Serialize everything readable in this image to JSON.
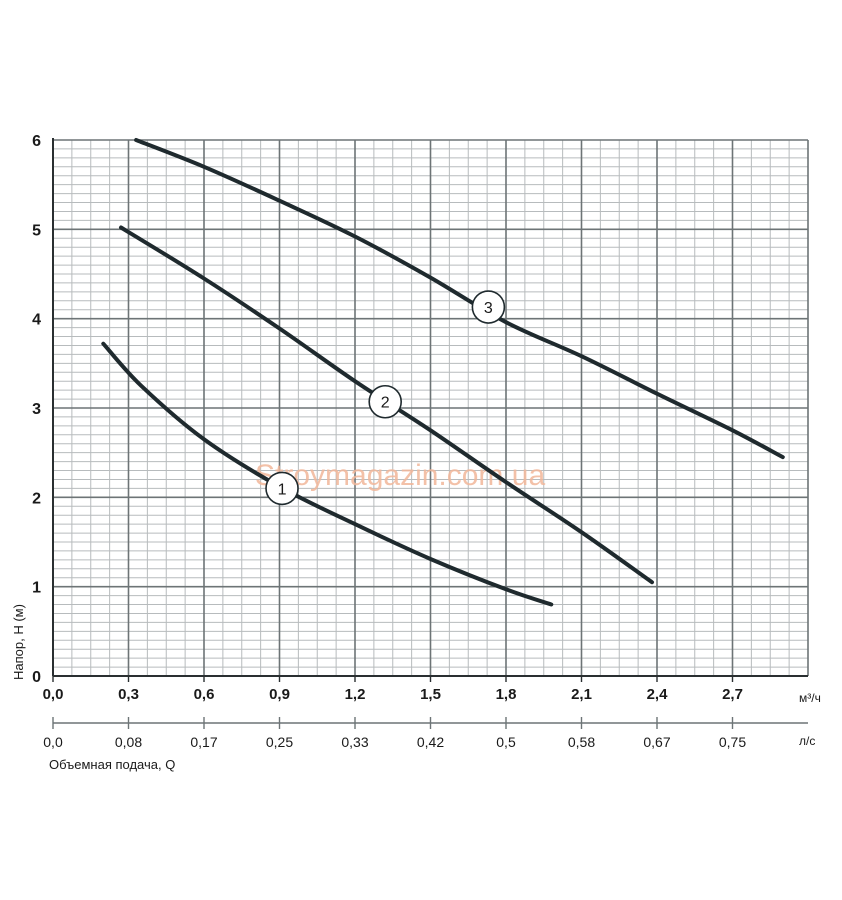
{
  "chart_data": {
    "type": "line",
    "ylabel": "Напор, H (м)",
    "xlabel": "Объемная подача, Q",
    "x_unit": "м³/ч",
    "x2_unit": "л/с",
    "xlim": [
      0,
      3.0
    ],
    "ylim": [
      0,
      6
    ],
    "x_ticks": [
      "0,0",
      "0,3",
      "0,6",
      "0,9",
      "1,2",
      "1,5",
      "1,8",
      "2,1",
      "2,4",
      "2,7"
    ],
    "x2_ticks": [
      "0,0",
      "0,08",
      "0,17",
      "0,25",
      "0,33",
      "0,42",
      "0,5",
      "0,58",
      "0,67",
      "0,75"
    ],
    "y_ticks": [
      "0",
      "1",
      "2",
      "3",
      "4",
      "5",
      "6"
    ],
    "grid": true,
    "watermark": "Stroymagazin.com.ua",
    "series": [
      {
        "name": "1",
        "color": "#1f2a2e",
        "points": [
          [
            0.2,
            3.72
          ],
          [
            0.35,
            3.25
          ],
          [
            0.6,
            2.65
          ],
          [
            0.9,
            2.12
          ],
          [
            1.2,
            1.7
          ],
          [
            1.5,
            1.31
          ],
          [
            1.8,
            0.97
          ],
          [
            1.98,
            0.8
          ]
        ]
      },
      {
        "name": "2",
        "color": "#1f2a2e",
        "points": [
          [
            0.27,
            5.02
          ],
          [
            0.6,
            4.45
          ],
          [
            0.9,
            3.89
          ],
          [
            1.2,
            3.3
          ],
          [
            1.5,
            2.75
          ],
          [
            1.8,
            2.17
          ],
          [
            2.1,
            1.61
          ],
          [
            2.38,
            1.05
          ]
        ]
      },
      {
        "name": "3",
        "color": "#1f2a2e",
        "points": [
          [
            0.33,
            6.0
          ],
          [
            0.6,
            5.7
          ],
          [
            0.9,
            5.32
          ],
          [
            1.2,
            4.92
          ],
          [
            1.5,
            4.46
          ],
          [
            1.8,
            3.96
          ],
          [
            2.1,
            3.58
          ],
          [
            2.4,
            3.16
          ],
          [
            2.7,
            2.75
          ],
          [
            2.9,
            2.45
          ]
        ]
      }
    ],
    "labels": [
      {
        "text": "1",
        "x": 0.91,
        "y": 2.1
      },
      {
        "text": "2",
        "x": 1.32,
        "y": 3.07
      },
      {
        "text": "3",
        "x": 1.73,
        "y": 4.13
      }
    ]
  }
}
